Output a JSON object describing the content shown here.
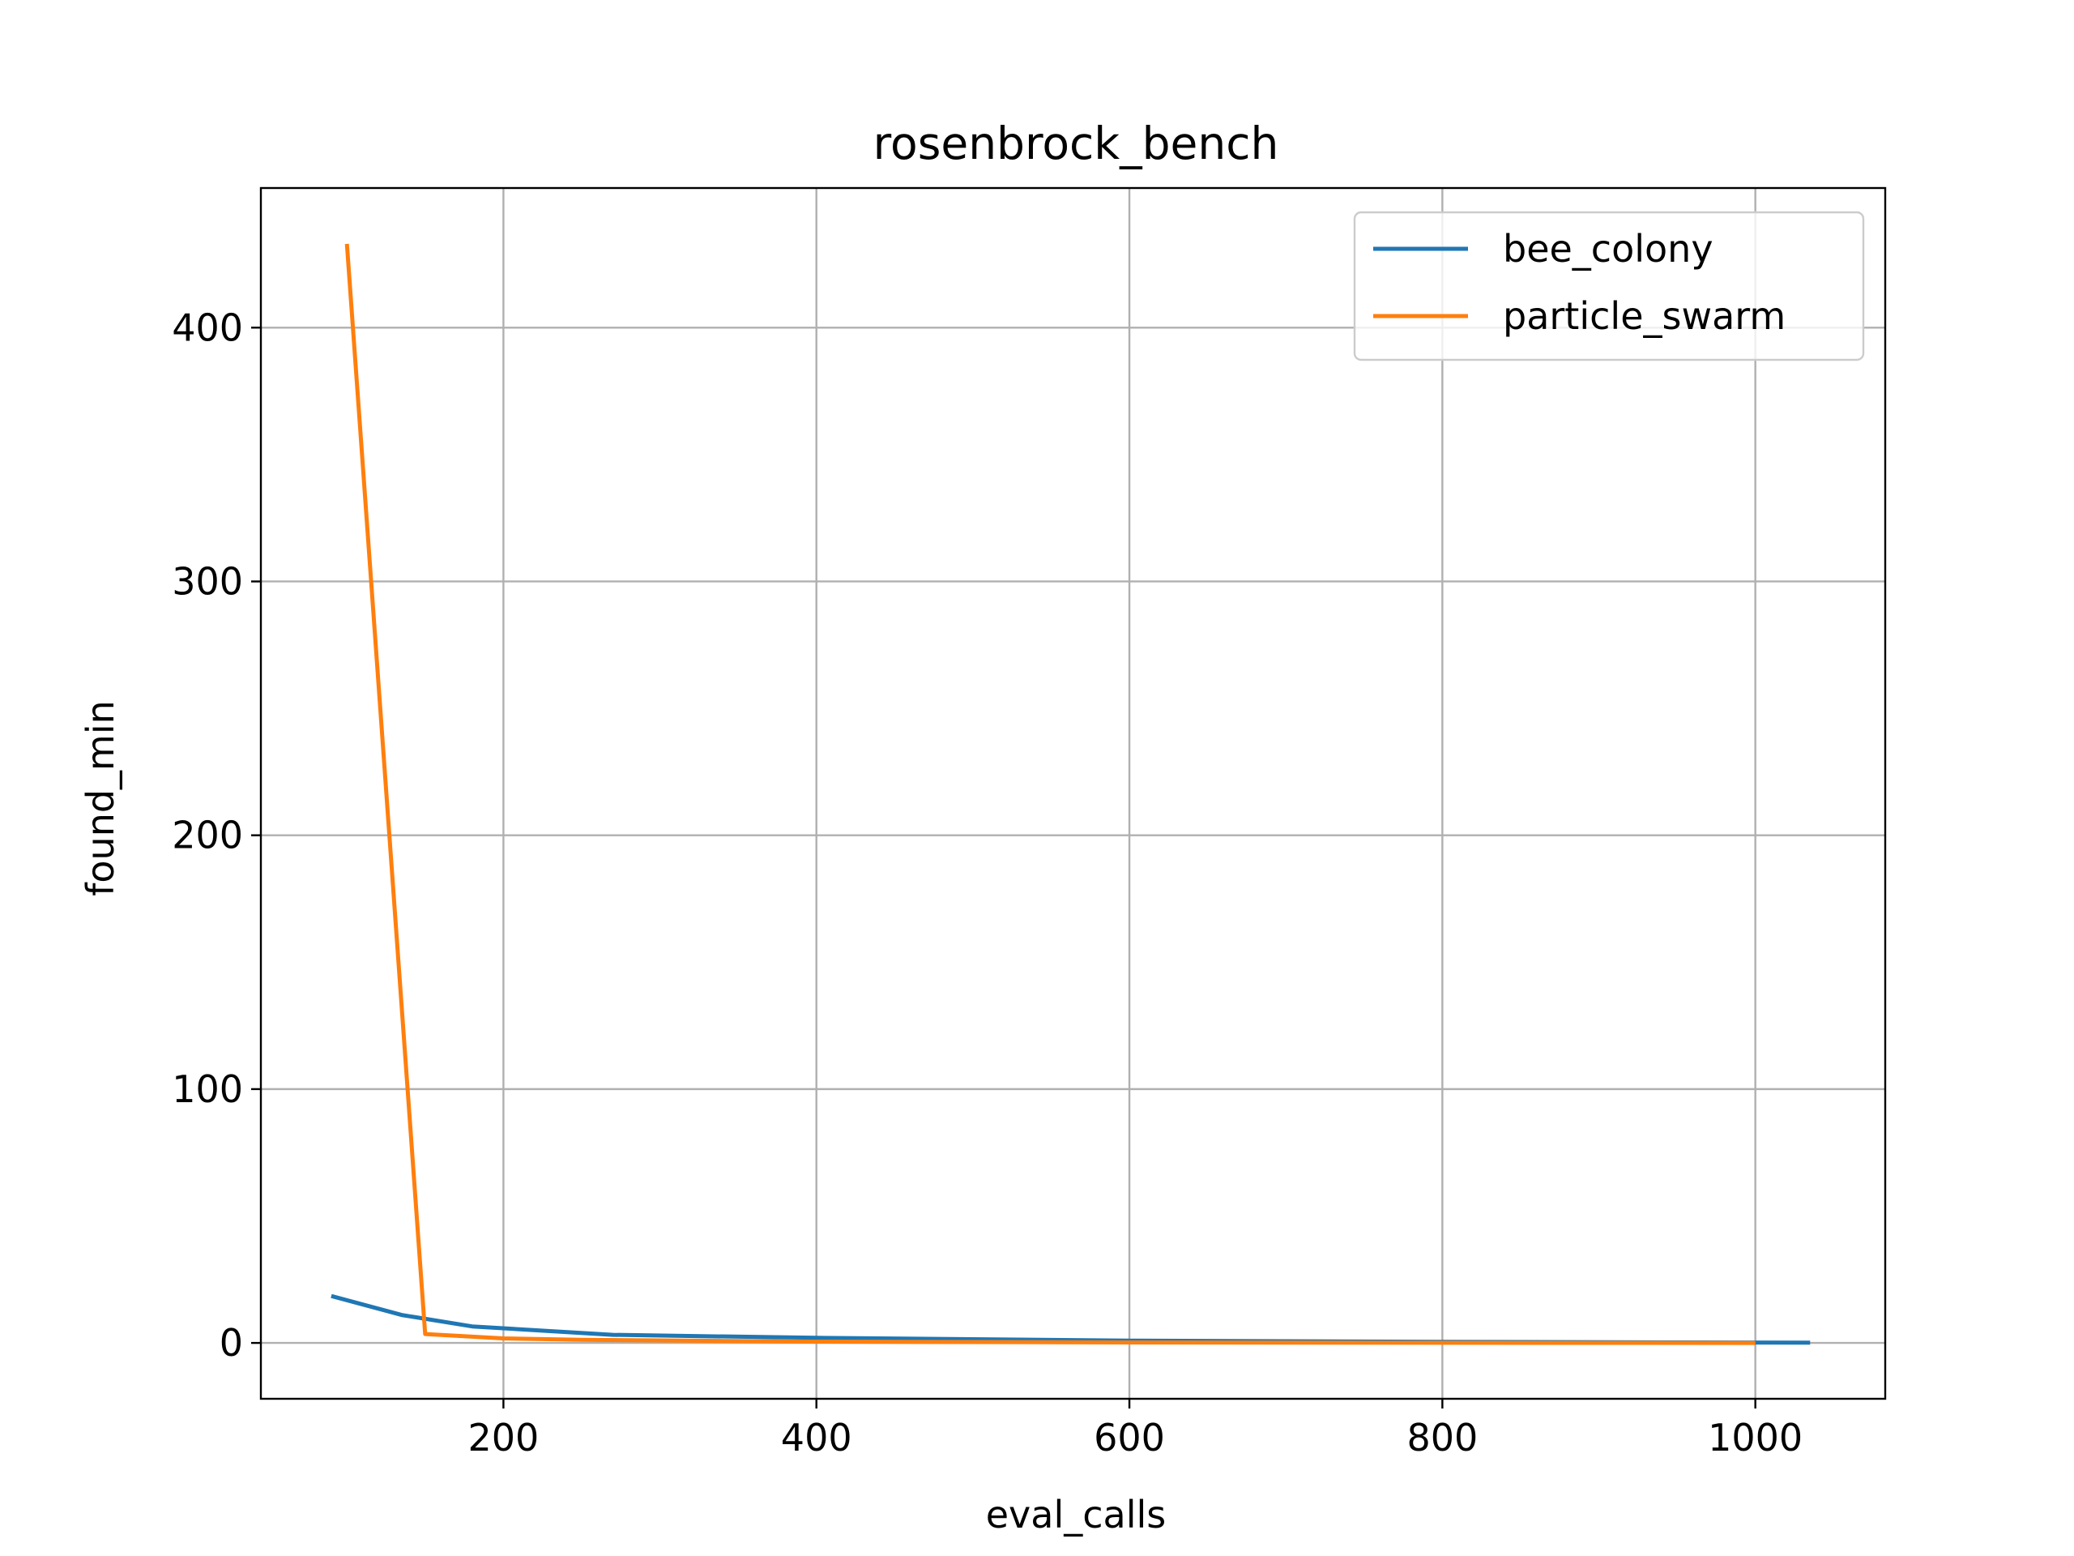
{
  "chart_data": {
    "type": "line",
    "title": "rosenbrock_bench",
    "xlabel": "eval_calls",
    "ylabel": "found_min",
    "xlim": [
      45,
      1083
    ],
    "ylim": [
      -22,
      455
    ],
    "xticks": [
      200,
      400,
      600,
      800,
      1000
    ],
    "yticks": [
      0,
      100,
      200,
      300,
      400
    ],
    "grid": true,
    "legend_position": "top-right",
    "series": [
      {
        "name": "bee_colony",
        "color": "#1f77b4",
        "x": [
          90,
          135,
          180,
          270,
          400,
          600,
          800,
          1000,
          1035
        ],
        "y": [
          18.5,
          11,
          6.5,
          3.2,
          2.0,
          0.9,
          0.4,
          0.15,
          0.1
        ]
      },
      {
        "name": "particle_swarm",
        "color": "#ff7f0e",
        "x": [
          100,
          150,
          200,
          250,
          400,
          600,
          800,
          1000
        ],
        "y": [
          433,
          3.5,
          1.8,
          1.2,
          0.5,
          0.2,
          0.05,
          0.0
        ]
      }
    ]
  }
}
